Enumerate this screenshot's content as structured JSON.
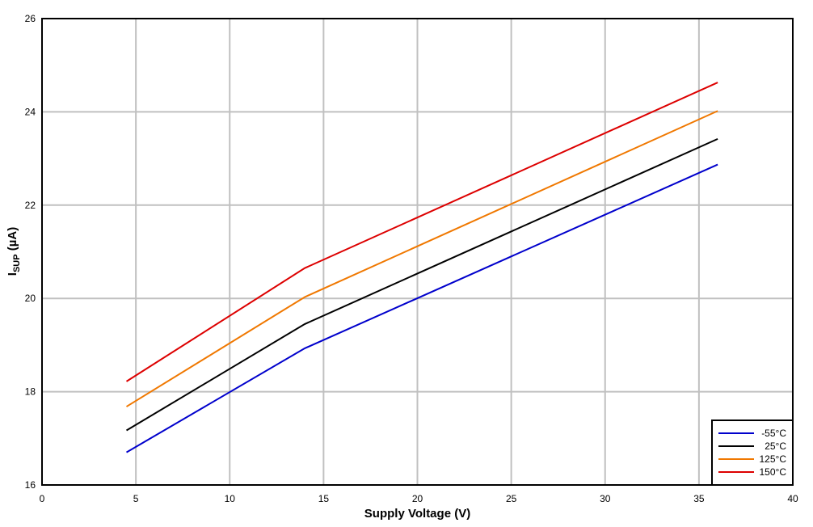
{
  "chart_data": {
    "type": "line",
    "title": "",
    "xlabel": "Supply Voltage (V)",
    "ylabel_main": "I",
    "ylabel_sub": "SUP",
    "ylabel_unit": " (µA)",
    "xlim": [
      0,
      40
    ],
    "ylim": [
      16,
      26
    ],
    "xticks": [
      0,
      5,
      10,
      15,
      20,
      25,
      30,
      35,
      40
    ],
    "yticks": [
      16,
      18,
      20,
      22,
      24,
      26
    ],
    "grid": true,
    "legend_position": "bottom-right",
    "series": [
      {
        "name": "-55°C",
        "color": "#0000cc",
        "x": [
          4.5,
          14,
          36
        ],
        "y": [
          16.7,
          18.93,
          22.87
        ]
      },
      {
        "name": "25°C",
        "color": "#000000",
        "x": [
          4.5,
          14,
          36
        ],
        "y": [
          17.17,
          19.45,
          23.42
        ]
      },
      {
        "name": "125°C",
        "color": "#f07800",
        "x": [
          4.5,
          14,
          36
        ],
        "y": [
          17.68,
          20.03,
          24.02
        ]
      },
      {
        "name": "150°C",
        "color": "#dd0000",
        "x": [
          4.5,
          14,
          36
        ],
        "y": [
          18.22,
          20.65,
          24.63
        ]
      }
    ]
  }
}
